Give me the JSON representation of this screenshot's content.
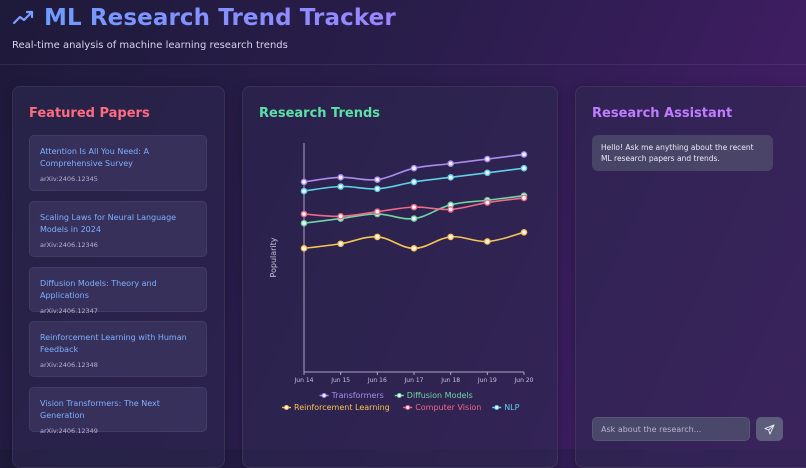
{
  "header": {
    "title": "ML Research Trend Tracker",
    "subtitle": "Real-time analysis of machine learning research trends",
    "icon": "trending-up-icon"
  },
  "papers": {
    "title": "Featured Papers",
    "items": [
      {
        "title": "Attention Is All You Need: A Comprehensive Survey",
        "id": "arXiv:2406.12345"
      },
      {
        "title": "Scaling Laws for Neural Language Models in 2024",
        "id": "arXiv:2406.12346"
      },
      {
        "title": "Diffusion Models: Theory and Applications",
        "id": "arXiv:2406.12347"
      },
      {
        "title": "Reinforcement Learning with Human Feedback",
        "id": "arXiv:2406.12348"
      },
      {
        "title": "Vision Transformers: The Next Generation",
        "id": "arXiv:2406.12349"
      }
    ]
  },
  "trends": {
    "title": "Research Trends"
  },
  "assistant": {
    "title": "Research Assistant",
    "greeting": "Hello! Ask me anything about the recent ML research papers and trends.",
    "input_placeholder": "Ask about the research...",
    "send_icon": "send-icon"
  },
  "colors": {
    "papers_title": "#ff6b7f",
    "trends_title": "#5de0a8",
    "assistant_title": "#c27cff"
  },
  "chart_data": {
    "type": "line",
    "x": [
      "Jun 14",
      "Jun 15",
      "Jun 16",
      "Jun 17",
      "Jun 18",
      "Jun 19",
      "Jun 20"
    ],
    "ylabel": "Popularity",
    "ylim": [
      0,
      100
    ],
    "grid": false,
    "legend_position": "bottom",
    "series": [
      {
        "name": "Transformers",
        "color": "#a98cf0",
        "values": [
          83,
          85,
          84,
          89,
          91,
          93,
          95
        ]
      },
      {
        "name": "Diffusion Models",
        "color": "#6fd6a3",
        "values": [
          65,
          67,
          69,
          67,
          73,
          75,
          77
        ]
      },
      {
        "name": "Reinforcement Learning",
        "color": "#f6c453",
        "values": [
          54,
          56,
          59,
          54,
          59,
          57,
          61
        ]
      },
      {
        "name": "Computer Vision",
        "color": "#ef6a84",
        "values": [
          69,
          68,
          70,
          72,
          71,
          74,
          76
        ]
      },
      {
        "name": "NLP",
        "color": "#5fd0e8",
        "values": [
          79,
          81,
          80,
          83,
          85,
          87,
          89
        ]
      }
    ]
  }
}
